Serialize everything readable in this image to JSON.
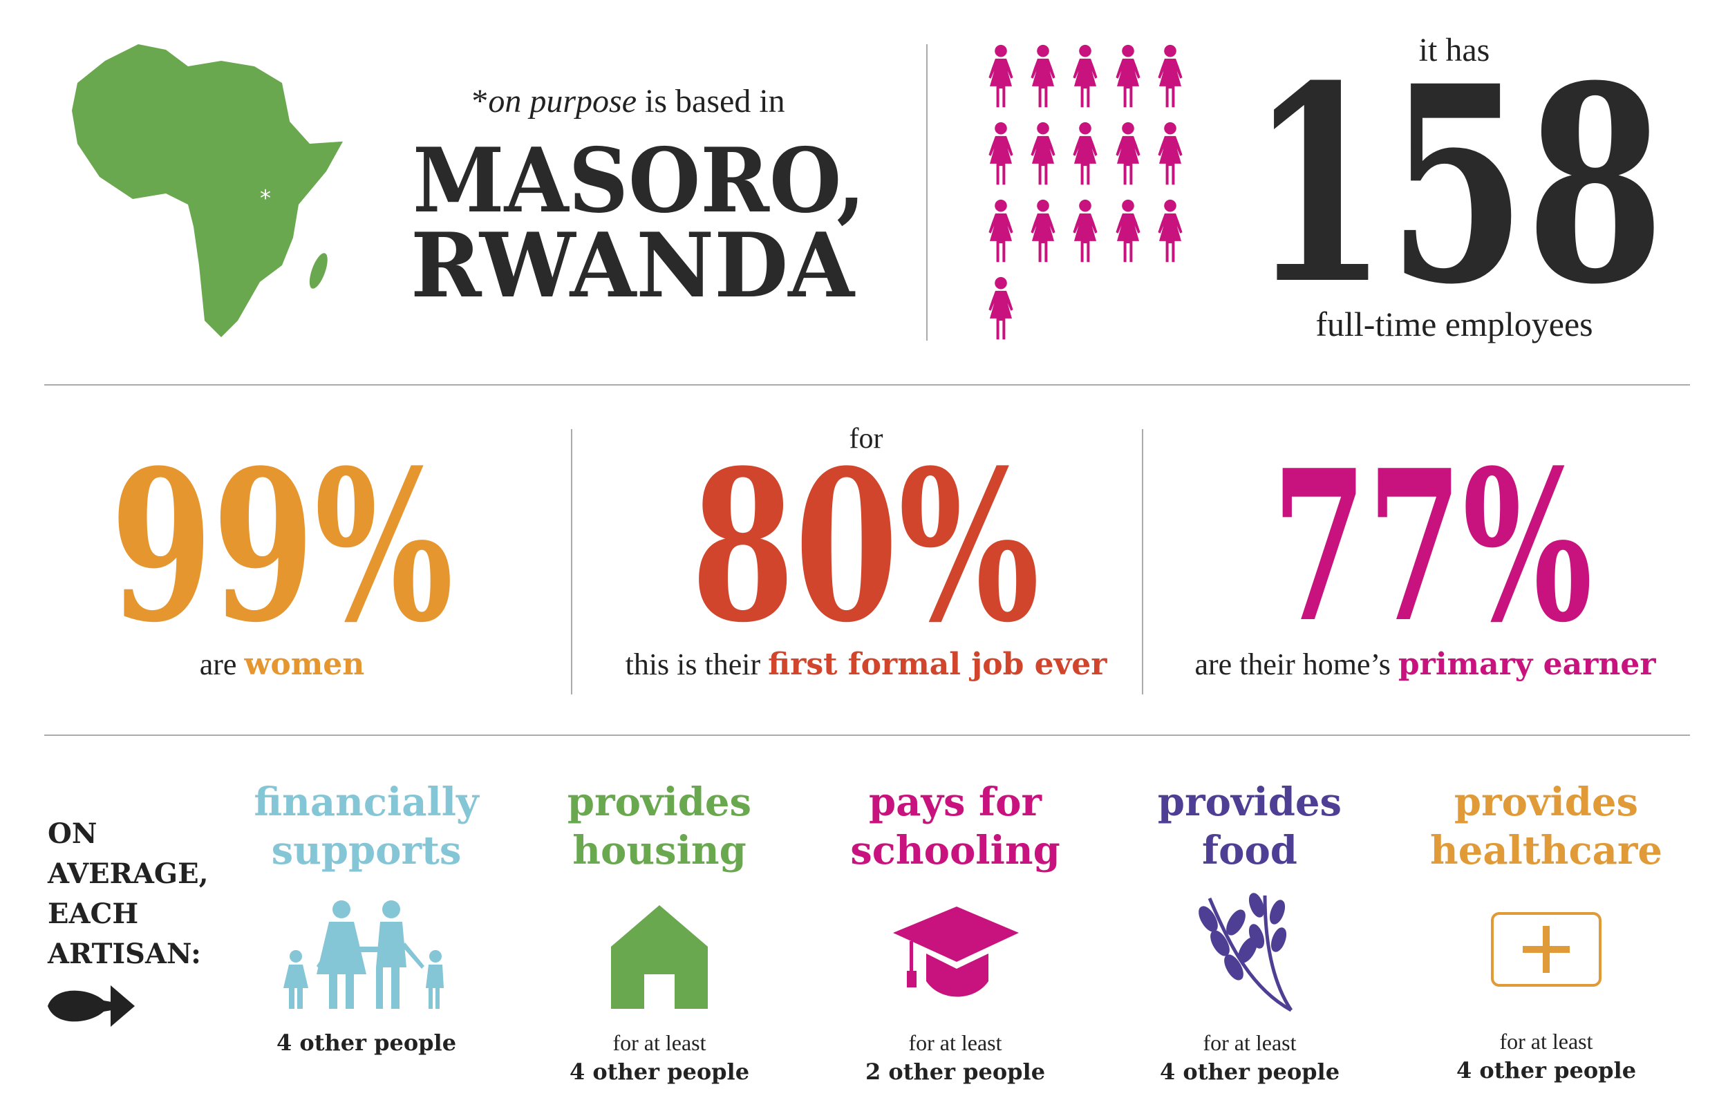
{
  "location": {
    "lead_mark": "*",
    "lead_italic": "on purpose",
    "lead_rest": " is based in",
    "lines": [
      "MASORO,",
      "RWANDA"
    ]
  },
  "employees": {
    "lead": "it has",
    "number": "158",
    "caption": "full-time employees"
  },
  "stats": [
    {
      "value": "99%",
      "caption_plain": "are ",
      "caption_bold": "women"
    },
    {
      "pre": "for",
      "value": "80%",
      "caption_plain": "this is their ",
      "caption_bold": "first formal job ever"
    },
    {
      "value": "77%",
      "caption_plain": "are their home’s ",
      "caption_bold": "primary earner"
    }
  ],
  "impact": {
    "label_lines": [
      "ON",
      "AVERAGE,",
      "EACH",
      "ARTISAN:"
    ],
    "items": [
      {
        "title_lines": [
          "financially",
          "supports"
        ],
        "caption_lines": [
          "4 other people"
        ]
      },
      {
        "title_lines": [
          "provides",
          "housing"
        ],
        "caption_lines": [
          "for at least",
          "4 other people"
        ]
      },
      {
        "title_lines": [
          "pays for",
          "schooling"
        ],
        "caption_lines": [
          "for at least",
          "2 other people"
        ]
      },
      {
        "title_lines": [
          "provides",
          "food"
        ],
        "caption_lines": [
          "for at least",
          "4 other people"
        ]
      },
      {
        "title_lines": [
          "provides",
          "healthcare"
        ],
        "caption_lines": [
          "for at least",
          "4 other people"
        ]
      }
    ]
  }
}
